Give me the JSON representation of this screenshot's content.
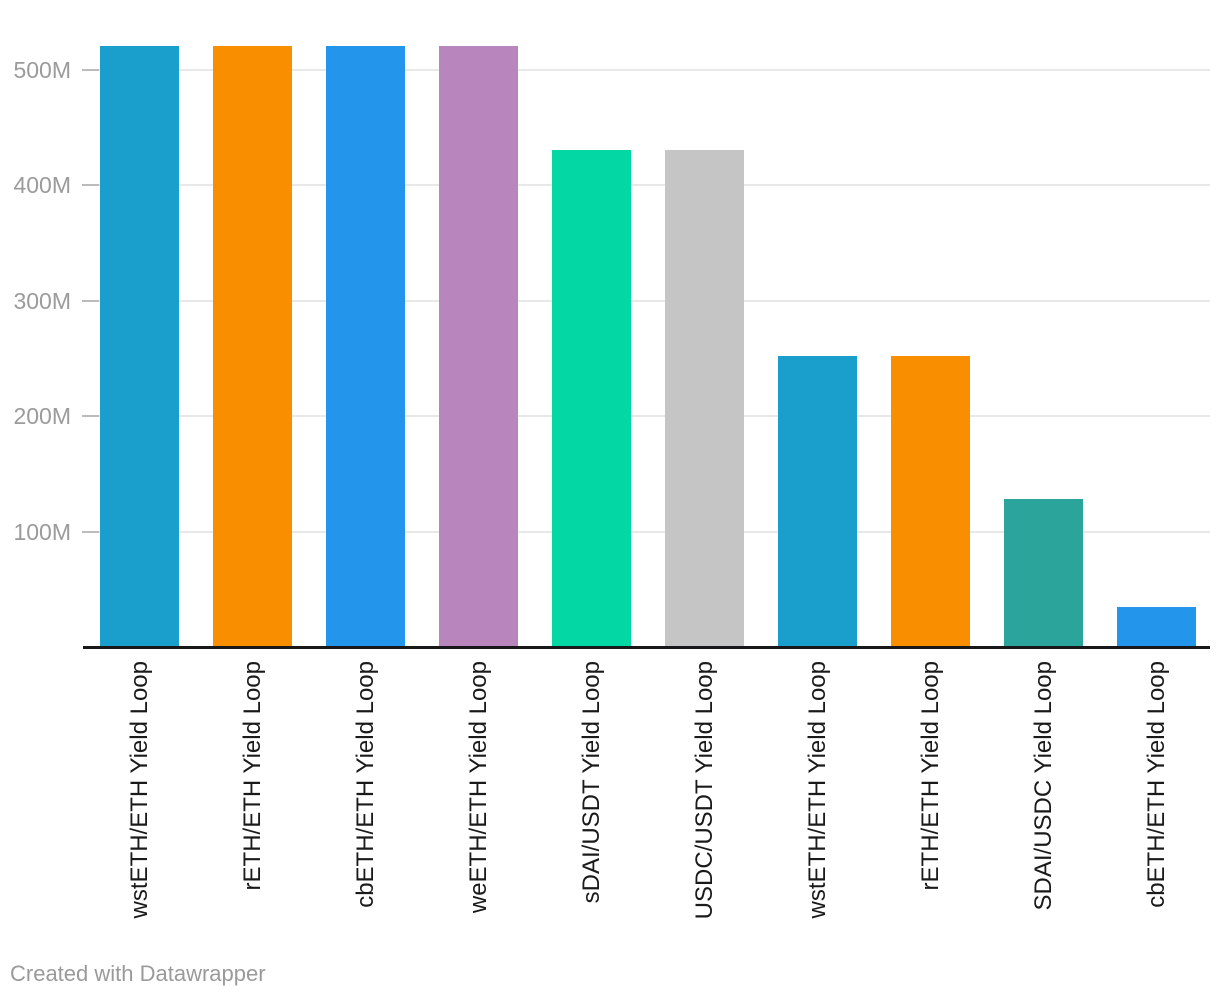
{
  "chart_data": {
    "type": "bar",
    "title": "",
    "xlabel": "",
    "ylabel": "",
    "categories": [
      "wstETH/ETH Yield Loop",
      "rETH/ETH Yield Loop",
      "cbETH/ETH Yield Loop",
      "weETH/ETH Yield Loop",
      "sDAI/USDT Yield Loop",
      "USDC/USDT Yield Loop",
      "wstETH/ETH Yield Loop",
      "rETH/ETH Yield Loop",
      "SDAI/USDC Yield Loop",
      "cbETH/ETH Yield Loop"
    ],
    "values": [
      520000000,
      520000000,
      520000000,
      520000000,
      430000000,
      430000000,
      252000000,
      252000000,
      128000000,
      35000000
    ],
    "bar_colors": [
      "#1A9FCD",
      "#F98F00",
      "#2395EB",
      "#B985BD",
      "#03D7A4",
      "#C5C5C5",
      "#1A9FCD",
      "#F98F00",
      "#2BA59B",
      "#2395EB"
    ],
    "yticks": [
      {
        "value": 100000000,
        "label": "100M"
      },
      {
        "value": 200000000,
        "label": "200M"
      },
      {
        "value": 300000000,
        "label": "300M"
      },
      {
        "value": 400000000,
        "label": "400M"
      },
      {
        "value": 500000000,
        "label": "500M"
      }
    ],
    "ylim": [
      0,
      560000000
    ],
    "grid": "horizontal gridlines, light gray",
    "legend": "none",
    "x_label_rotation": "vertical, reading bottom-to-top"
  },
  "footer": {
    "text": "Created with Datawrapper"
  },
  "colors": {
    "background": "#FFFFFF",
    "axis_line": "#18181A",
    "gridline": "#E8E8E8",
    "tick_dash": "#BBBBBB",
    "y_tick_label": "#9B9B9B",
    "category_label": "#1A1A1A",
    "footer_text": "#9A9A9A"
  }
}
